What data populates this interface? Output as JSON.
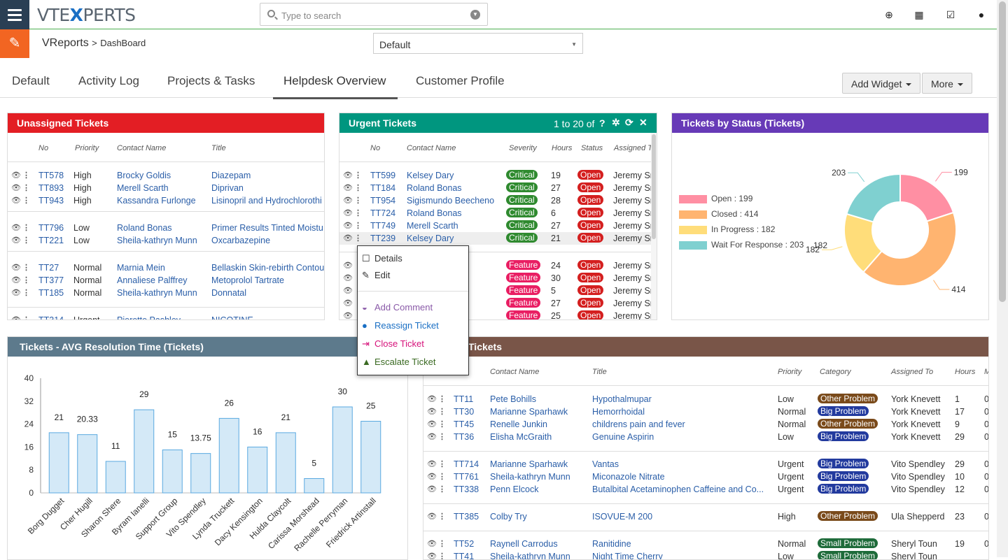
{
  "topbar": {
    "logo": {
      "part1": "VTE",
      "part2": "X",
      "part3": "PERTS"
    },
    "search_placeholder": "Type to search",
    "icons": [
      "plus-circle-icon",
      "calendar-icon",
      "checkbox-icon",
      "user-icon"
    ]
  },
  "breadcrumb": {
    "module": "VReports",
    "sep": ">",
    "page": "DashBoard"
  },
  "report_select": {
    "value": "Default"
  },
  "tabs": [
    "Default",
    "Activity Log",
    "Projects & Tasks",
    "Helpdesk Overview",
    "Customer Profile"
  ],
  "active_tab": "Helpdesk Overview",
  "buttons": {
    "add_widget": "Add Widget",
    "more": "More"
  },
  "unassigned": {
    "title": "Unassigned Tickets",
    "columns": [
      "No",
      "Priority",
      "Contact Name",
      "Title"
    ],
    "rows": [
      [
        "TT578",
        "High",
        "Brocky Goldis",
        "Diazepam"
      ],
      [
        "TT893",
        "High",
        "Merell Scarth",
        "Diprivan"
      ],
      [
        "TT943",
        "High",
        "Kassandra Furlonge",
        "Lisinopril and Hydrochlorothi"
      ],
      [
        "TT796",
        "Low",
        "Roland Bonas",
        "Primer Results Tinted Moistu"
      ],
      [
        "TT221",
        "Low",
        "Sheila-kathryn Munn",
        "Oxcarbazepine"
      ],
      [
        "TT27",
        "Normal",
        "Marnia Mein",
        "Bellaskin Skin-rebirth Contou"
      ],
      [
        "TT377",
        "Normal",
        "Annaliese Palffrey",
        "Metoprolol Tartrate"
      ],
      [
        "TT185",
        "Normal",
        "Sheila-kathryn Munn",
        "Donnatal"
      ],
      [
        "TT314",
        "Urgent",
        "Pierette Pashley",
        "NICOTINE"
      ]
    ]
  },
  "urgent": {
    "title": "Urgent Tickets",
    "pager": "1 to 20 of",
    "pager_q": "?",
    "columns": [
      "No",
      "Contact Name",
      "Severity",
      "Hours",
      "Status",
      "Assigned To"
    ],
    "rows": [
      [
        "TT599",
        "Kelsey Dary",
        "Critical",
        "19",
        "Open",
        "Jeremy Smi"
      ],
      [
        "TT184",
        "Roland Bonas",
        "Critical",
        "27",
        "Open",
        "Jeremy Smi"
      ],
      [
        "TT954",
        "Sigismundo Beecheno",
        "Critical",
        "28",
        "Open",
        "Jeremy Smi"
      ],
      [
        "TT724",
        "Roland Bonas",
        "Critical",
        "6",
        "Open",
        "Jeremy Smi"
      ],
      [
        "TT749",
        "Merell Scarth",
        "Critical",
        "27",
        "Open",
        "Jeremy Smi"
      ],
      [
        "TT239",
        "Kelsey Dary",
        "Critical",
        "21",
        "Open",
        "Jeremy Smi"
      ],
      [
        "",
        "",
        "Feature",
        "24",
        "Open",
        "Jeremy Smi"
      ],
      [
        "",
        "",
        "Feature",
        "30",
        "Open",
        "Jeremy Smi"
      ],
      [
        "",
        "",
        "Feature",
        "5",
        "Open",
        "Jeremy Smi"
      ],
      [
        "",
        "",
        "Feature",
        "27",
        "Open",
        "Jeremy Smi"
      ],
      [
        "",
        "",
        "Feature",
        "25",
        "Open",
        "Jeremy Smi"
      ]
    ]
  },
  "context_menu": {
    "details": "Details",
    "edit": "Edit",
    "add_comment": "Add Comment",
    "reassign": "Reassign Ticket",
    "close": "Close Ticket",
    "escalate": "Escalate Ticket"
  },
  "status_widget": {
    "title": "Tickets by Status (Tickets)",
    "legend": [
      "Open : 199",
      "Closed : 414",
      "In Progress : 182",
      "Wait For Response : 203"
    ],
    "colors": [
      "#ff8fa3",
      "#ffb470",
      "#ffdd7a",
      "#7fd0d0"
    ],
    "extra_label": "182"
  },
  "avg_widget": {
    "title": "Tickets - AVG Resolution Time (Tickets)"
  },
  "bottom_right": {
    "title": "Tickets",
    "columns": [
      "Contact Name",
      "Title",
      "Priority",
      "Category",
      "Assigned To",
      "Hours",
      "M"
    ],
    "rows": [
      [
        "TT11",
        "Pete Bohills",
        "Hypothalmupar",
        "Low",
        "Other Problem",
        "York Knevett",
        "1",
        "0"
      ],
      [
        "TT30",
        "Marianne Sparhawk",
        "Hemorrhoidal",
        "Normal",
        "Big Problem",
        "York Knevett",
        "17",
        "0"
      ],
      [
        "TT45",
        "Renelle Junkin",
        "childrens pain and fever",
        "Normal",
        "Other Problem",
        "York Knevett",
        "9",
        "0"
      ],
      [
        "TT36",
        "Elisha McGraith",
        "Genuine Aspirin",
        "Low",
        "Big Problem",
        "York Knevett",
        "29",
        "0"
      ],
      [
        "TT714",
        "Marianne Sparhawk",
        "Vantas",
        "Urgent",
        "Big Problem",
        "Vito Spendley",
        "29",
        "0"
      ],
      [
        "TT761",
        "Sheila-kathryn Munn",
        "Miconazole Nitrate",
        "Urgent",
        "Big Problem",
        "Vito Spendley",
        "10",
        "0"
      ],
      [
        "TT338",
        "Penn Elcock",
        "Butalbital Acetaminophen Caffeine and Co...",
        "Urgent",
        "Big Problem",
        "Vito Spendley",
        "12",
        "0"
      ],
      [
        "TT385",
        "Colby Try",
        "ISOVUE-M 200",
        "High",
        "Other Problem",
        "Ula Shepperd",
        "23",
        "0"
      ],
      [
        "TT52",
        "Raynell Carrodus",
        "Ranitidine",
        "Normal",
        "Small Problem",
        "Sheryl Toun",
        "19",
        "0"
      ],
      [
        "TT41",
        "Sheila-kathryn Munn",
        "Night Time Cherry",
        "Low",
        "Small Problem",
        "Sheryl Toun",
        "",
        ""
      ]
    ]
  },
  "chart_data": [
    {
      "type": "bar",
      "title": "Tickets - AVG Resolution Time (Tickets)",
      "categories": [
        "Borg Dugget",
        "Cher Hugill",
        "Sharon Shere",
        "Byram Ianelli",
        "Support Group",
        "Vito Spendley",
        "Lynda Truckett",
        "Dacy Kensington",
        "Hulda Claycolt",
        "Carissa Morshead",
        "Rachelle Perryman",
        "Friedrick Artinstall"
      ],
      "values": [
        21,
        20.33,
        11,
        29,
        15,
        13.75,
        26,
        16,
        21,
        5,
        30,
        25
      ],
      "value_labels": [
        "21",
        "20.33",
        "11",
        "29",
        "15",
        "13.75",
        "26",
        "16",
        "21",
        "5",
        "30",
        "25"
      ],
      "yticks": [
        "0",
        "8",
        "16",
        "24",
        "32",
        "40"
      ],
      "ylim": [
        0,
        40
      ],
      "grid": false,
      "color": "#d4e9f7"
    },
    {
      "type": "pie",
      "title": "Tickets by Status (Tickets)",
      "categories": [
        "Open",
        "Closed",
        "In Progress",
        "Wait For Response"
      ],
      "values": [
        199,
        414,
        182,
        203
      ],
      "data_labels": [
        "199",
        "414",
        "182",
        "203"
      ],
      "legend": "left",
      "donut": true
    }
  ]
}
